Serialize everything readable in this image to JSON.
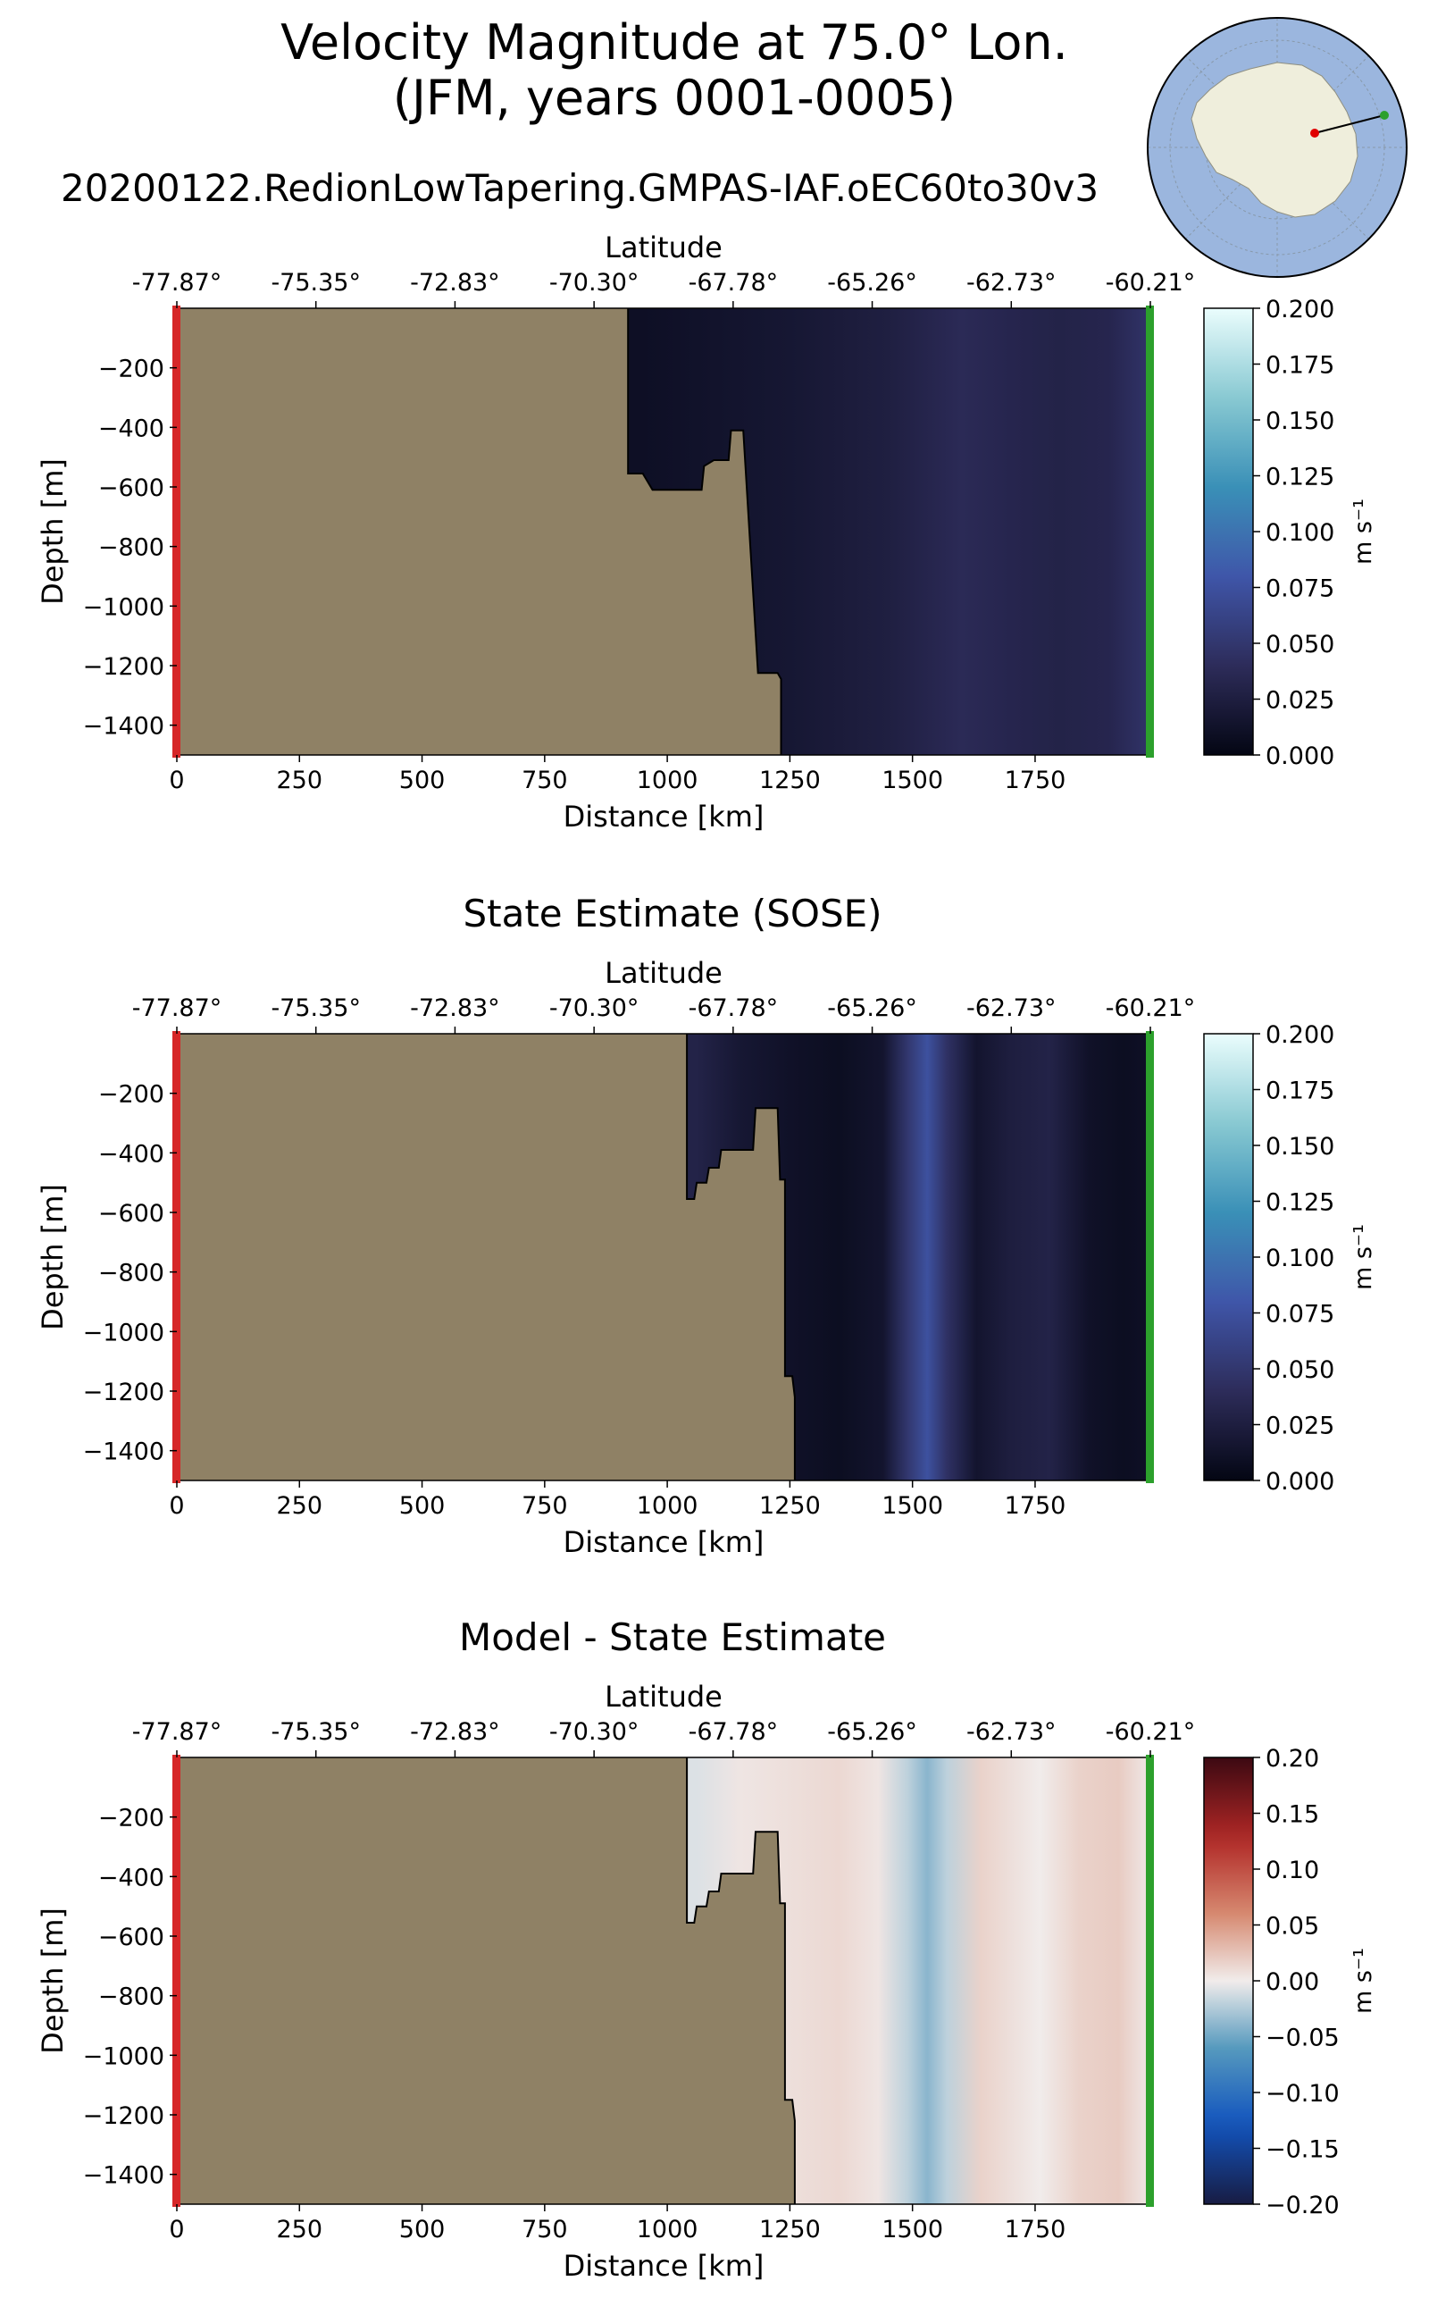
{
  "figure": {
    "title_line1": "Velocity Magnitude at 75.0° Lon.",
    "title_line2": "(JFM, years 0001-0005)",
    "run_name": "20200122.RedionLowTapering.GMPAS-IAF.oEC60to30v3",
    "inset_map": {
      "type": "antarctic-polar-stereographic",
      "transect_start": "red-dot",
      "transect_end": "green-dot"
    }
  },
  "colors": {
    "land": "#8f8165",
    "start_marker": "#d62728",
    "end_marker": "#2ca02c",
    "outline": "#000000"
  },
  "chart_data": [
    {
      "type": "heatmap",
      "title": "",
      "xlabel": "Distance [km]",
      "ylabel": "Depth [m]",
      "top_xlabel": "Latitude",
      "xlim": [
        0,
        1985
      ],
      "ylim": [
        -1500,
        0
      ],
      "x_ticks": [
        0,
        250,
        500,
        750,
        1000,
        1250,
        1500,
        1750
      ],
      "y_ticks": [
        -200,
        -400,
        -600,
        -800,
        -1000,
        -1200,
        -1400
      ],
      "lat_ticks": [
        "-77.87°",
        "-75.35°",
        "-72.83°",
        "-70.30°",
        "-67.78°",
        "-65.26°",
        "-62.73°",
        "-60.21°"
      ],
      "colorbar": {
        "label": "m s⁻¹",
        "colormap": "ice",
        "range": [
          0.0,
          0.2
        ],
        "ticks": [
          "0.000",
          "0.025",
          "0.050",
          "0.075",
          "0.100",
          "0.125",
          "0.150",
          "0.175",
          "0.200"
        ]
      },
      "bathymetry": [
        [
          0,
          0
        ],
        [
          920,
          0
        ],
        [
          920,
          -555
        ],
        [
          950,
          -555
        ],
        [
          970,
          -610
        ],
        [
          1070,
          -610
        ],
        [
          1075,
          -530
        ],
        [
          1095,
          -510
        ],
        [
          1125,
          -510
        ],
        [
          1130,
          -410
        ],
        [
          1155,
          -410
        ],
        [
          1185,
          -1225
        ],
        [
          1225,
          -1225
        ],
        [
          1232,
          -1245
        ],
        [
          1232,
          -1500
        ]
      ],
      "ocean_values": [
        {
          "x": 950,
          "v": 0.01
        },
        {
          "x": 1100,
          "v": 0.014
        },
        {
          "x": 1250,
          "v": 0.018
        },
        {
          "x": 1350,
          "v": 0.022
        },
        {
          "x": 1450,
          "v": 0.026
        },
        {
          "x": 1550,
          "v": 0.034
        },
        {
          "x": 1600,
          "v": 0.038
        },
        {
          "x": 1700,
          "v": 0.033
        },
        {
          "x": 1800,
          "v": 0.03
        },
        {
          "x": 1900,
          "v": 0.033
        },
        {
          "x": 1970,
          "v": 0.045
        }
      ]
    },
    {
      "type": "heatmap",
      "title": "State Estimate (SOSE)",
      "xlabel": "Distance [km]",
      "ylabel": "Depth [m]",
      "top_xlabel": "Latitude",
      "xlim": [
        0,
        1985
      ],
      "ylim": [
        -1500,
        0
      ],
      "x_ticks": [
        0,
        250,
        500,
        750,
        1000,
        1250,
        1500,
        1750
      ],
      "y_ticks": [
        -200,
        -400,
        -600,
        -800,
        -1000,
        -1200,
        -1400
      ],
      "lat_ticks": [
        "-77.87°",
        "-75.35°",
        "-72.83°",
        "-70.30°",
        "-67.78°",
        "-65.26°",
        "-62.73°",
        "-60.21°"
      ],
      "colorbar": {
        "label": "m s⁻¹",
        "colormap": "ice",
        "range": [
          0.0,
          0.2
        ],
        "ticks": [
          "0.000",
          "0.025",
          "0.050",
          "0.075",
          "0.100",
          "0.125",
          "0.150",
          "0.175",
          "0.200"
        ]
      },
      "bathymetry": [
        [
          0,
          0
        ],
        [
          1040,
          0
        ],
        [
          1040,
          -555
        ],
        [
          1055,
          -555
        ],
        [
          1060,
          -500
        ],
        [
          1080,
          -500
        ],
        [
          1085,
          -450
        ],
        [
          1105,
          -450
        ],
        [
          1110,
          -390
        ],
        [
          1175,
          -390
        ],
        [
          1180,
          -250
        ],
        [
          1225,
          -250
        ],
        [
          1230,
          -490
        ],
        [
          1240,
          -490
        ],
        [
          1240,
          -1150
        ],
        [
          1255,
          -1150
        ],
        [
          1260,
          -1220
        ],
        [
          1260,
          -1500
        ]
      ],
      "ocean_values": [
        {
          "x": 1060,
          "v": 0.03
        },
        {
          "x": 1150,
          "v": 0.018
        },
        {
          "x": 1250,
          "v": 0.012
        },
        {
          "x": 1350,
          "v": 0.008
        },
        {
          "x": 1440,
          "v": 0.015
        },
        {
          "x": 1490,
          "v": 0.05
        },
        {
          "x": 1530,
          "v": 0.075
        },
        {
          "x": 1570,
          "v": 0.045
        },
        {
          "x": 1630,
          "v": 0.015
        },
        {
          "x": 1700,
          "v": 0.025
        },
        {
          "x": 1780,
          "v": 0.03
        },
        {
          "x": 1860,
          "v": 0.012
        },
        {
          "x": 1930,
          "v": 0.008
        },
        {
          "x": 1970,
          "v": 0.01
        }
      ]
    },
    {
      "type": "heatmap",
      "title": "Model - State Estimate",
      "xlabel": "Distance [km]",
      "ylabel": "Depth [m]",
      "top_xlabel": "Latitude",
      "xlim": [
        0,
        1985
      ],
      "ylim": [
        -1500,
        0
      ],
      "x_ticks": [
        0,
        250,
        500,
        750,
        1000,
        1250,
        1500,
        1750
      ],
      "y_ticks": [
        -200,
        -400,
        -600,
        -800,
        -1000,
        -1200,
        -1400
      ],
      "lat_ticks": [
        "-77.87°",
        "-75.35°",
        "-72.83°",
        "-70.30°",
        "-67.78°",
        "-65.26°",
        "-62.73°",
        "-60.21°"
      ],
      "colorbar": {
        "label": "m s⁻¹",
        "colormap": "balance",
        "range": [
          -0.2,
          0.2
        ],
        "ticks": [
          "0.20",
          "0.15",
          "0.10",
          "0.05",
          "0.00",
          "−0.05",
          "−0.10",
          "−0.15",
          "−0.20"
        ]
      },
      "bathymetry": [
        [
          0,
          0
        ],
        [
          1040,
          0
        ],
        [
          1040,
          -555
        ],
        [
          1055,
          -555
        ],
        [
          1060,
          -500
        ],
        [
          1080,
          -500
        ],
        [
          1085,
          -450
        ],
        [
          1105,
          -450
        ],
        [
          1110,
          -390
        ],
        [
          1175,
          -390
        ],
        [
          1180,
          -250
        ],
        [
          1225,
          -250
        ],
        [
          1230,
          -490
        ],
        [
          1240,
          -490
        ],
        [
          1240,
          -1150
        ],
        [
          1255,
          -1150
        ],
        [
          1260,
          -1220
        ],
        [
          1260,
          -1500
        ]
      ],
      "ocean_values": [
        {
          "x": 1060,
          "v": -0.008
        },
        {
          "x": 1150,
          "v": 0.004
        },
        {
          "x": 1250,
          "v": 0.008
        },
        {
          "x": 1350,
          "v": 0.012
        },
        {
          "x": 1430,
          "v": 0.004
        },
        {
          "x": 1490,
          "v": -0.02
        },
        {
          "x": 1530,
          "v": -0.04
        },
        {
          "x": 1570,
          "v": -0.02
        },
        {
          "x": 1640,
          "v": 0.016
        },
        {
          "x": 1700,
          "v": 0.008
        },
        {
          "x": 1760,
          "v": 0.0
        },
        {
          "x": 1840,
          "v": 0.016
        },
        {
          "x": 1920,
          "v": 0.02
        },
        {
          "x": 1970,
          "v": 0.006
        }
      ]
    }
  ]
}
